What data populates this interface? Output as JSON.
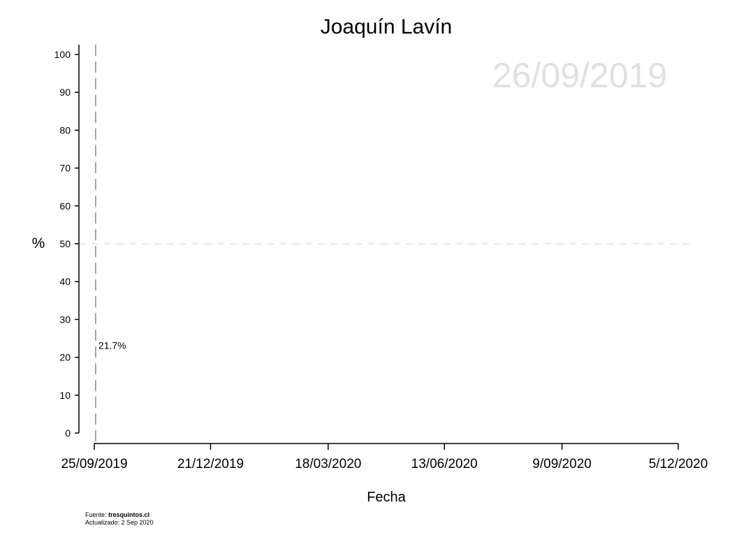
{
  "chart_data": {
    "type": "line",
    "title": "Joaquín Lavín",
    "xlabel": "Fecha",
    "ylabel": "%",
    "ylim": [
      0,
      100
    ],
    "yticks": [
      0,
      10,
      20,
      30,
      40,
      50,
      60,
      70,
      80,
      90,
      100
    ],
    "xlim": [
      "2019-09-20",
      "2020-12-05"
    ],
    "xticks": [
      {
        "date": "2019-09-25",
        "label": "25/09/2019"
      },
      {
        "date": "2019-12-21",
        "label": "21/12/2019"
      },
      {
        "date": "2020-03-18",
        "label": "18/03/2020"
      },
      {
        "date": "2020-06-13",
        "label": "13/06/2020"
      },
      {
        "date": "2020-09-09",
        "label": "9/09/2020"
      },
      {
        "date": "2020-12-05",
        "label": "5/12/2020"
      }
    ],
    "reference_line_y": 50,
    "current_date_marker": "2019-09-26",
    "watermark_date": "26/09/2019",
    "points": [
      {
        "date": "2019-09-26",
        "value": 21.7,
        "label": "21.7%"
      }
    ],
    "grid": false,
    "legend": "none"
  },
  "footer": {
    "source_prefix": "Fuente: ",
    "source_site": "tresquintos.cl",
    "updated": "Actualizado: 2 Sep 2020"
  },
  "colors": {
    "watermark": "#e0e0e0",
    "reference_line": "#d9d9d9",
    "marker_line": "#888888",
    "axis": "#000000"
  }
}
